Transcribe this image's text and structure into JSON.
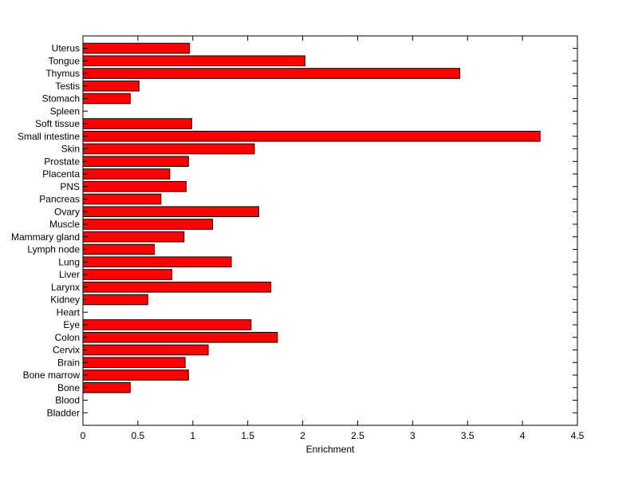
{
  "chart_data": {
    "type": "bar",
    "orientation": "horizontal",
    "title": "",
    "xlabel": "Enrichment",
    "ylabel": "",
    "xlim": [
      0,
      4.5
    ],
    "xticks": [
      "0",
      "0.5",
      "1",
      "1.5",
      "2",
      "2.5",
      "3",
      "3.5",
      "4",
      "4.5"
    ],
    "bar_color": "#ff0000",
    "edge_color": "#000000",
    "grid": false,
    "categories": [
      "Uterus",
      "Tongue",
      "Thymus",
      "Testis",
      "Stomach",
      "Spleen",
      "Soft tissue",
      "Small intestine",
      "Skin",
      "Prostate",
      "Placenta",
      "PNS",
      "Pancreas",
      "Ovary",
      "Muscle",
      "Mammary gland",
      "Lymph node",
      "Lung",
      "Liver",
      "Larynx",
      "Kidney",
      "Heart",
      "Eye",
      "Colon",
      "Cervix",
      "Brain",
      "Bone marrow",
      "Bone",
      "Blood",
      "Bladder"
    ],
    "values": [
      0.97,
      2.02,
      3.43,
      0.51,
      0.43,
      0,
      0.99,
      4.16,
      1.56,
      0.96,
      0.79,
      0.94,
      0.71,
      1.6,
      1.18,
      0.92,
      0.65,
      1.35,
      0.81,
      1.71,
      0.59,
      0,
      1.53,
      1.77,
      1.14,
      0.93,
      0.96,
      0.43,
      0,
      0
    ]
  }
}
